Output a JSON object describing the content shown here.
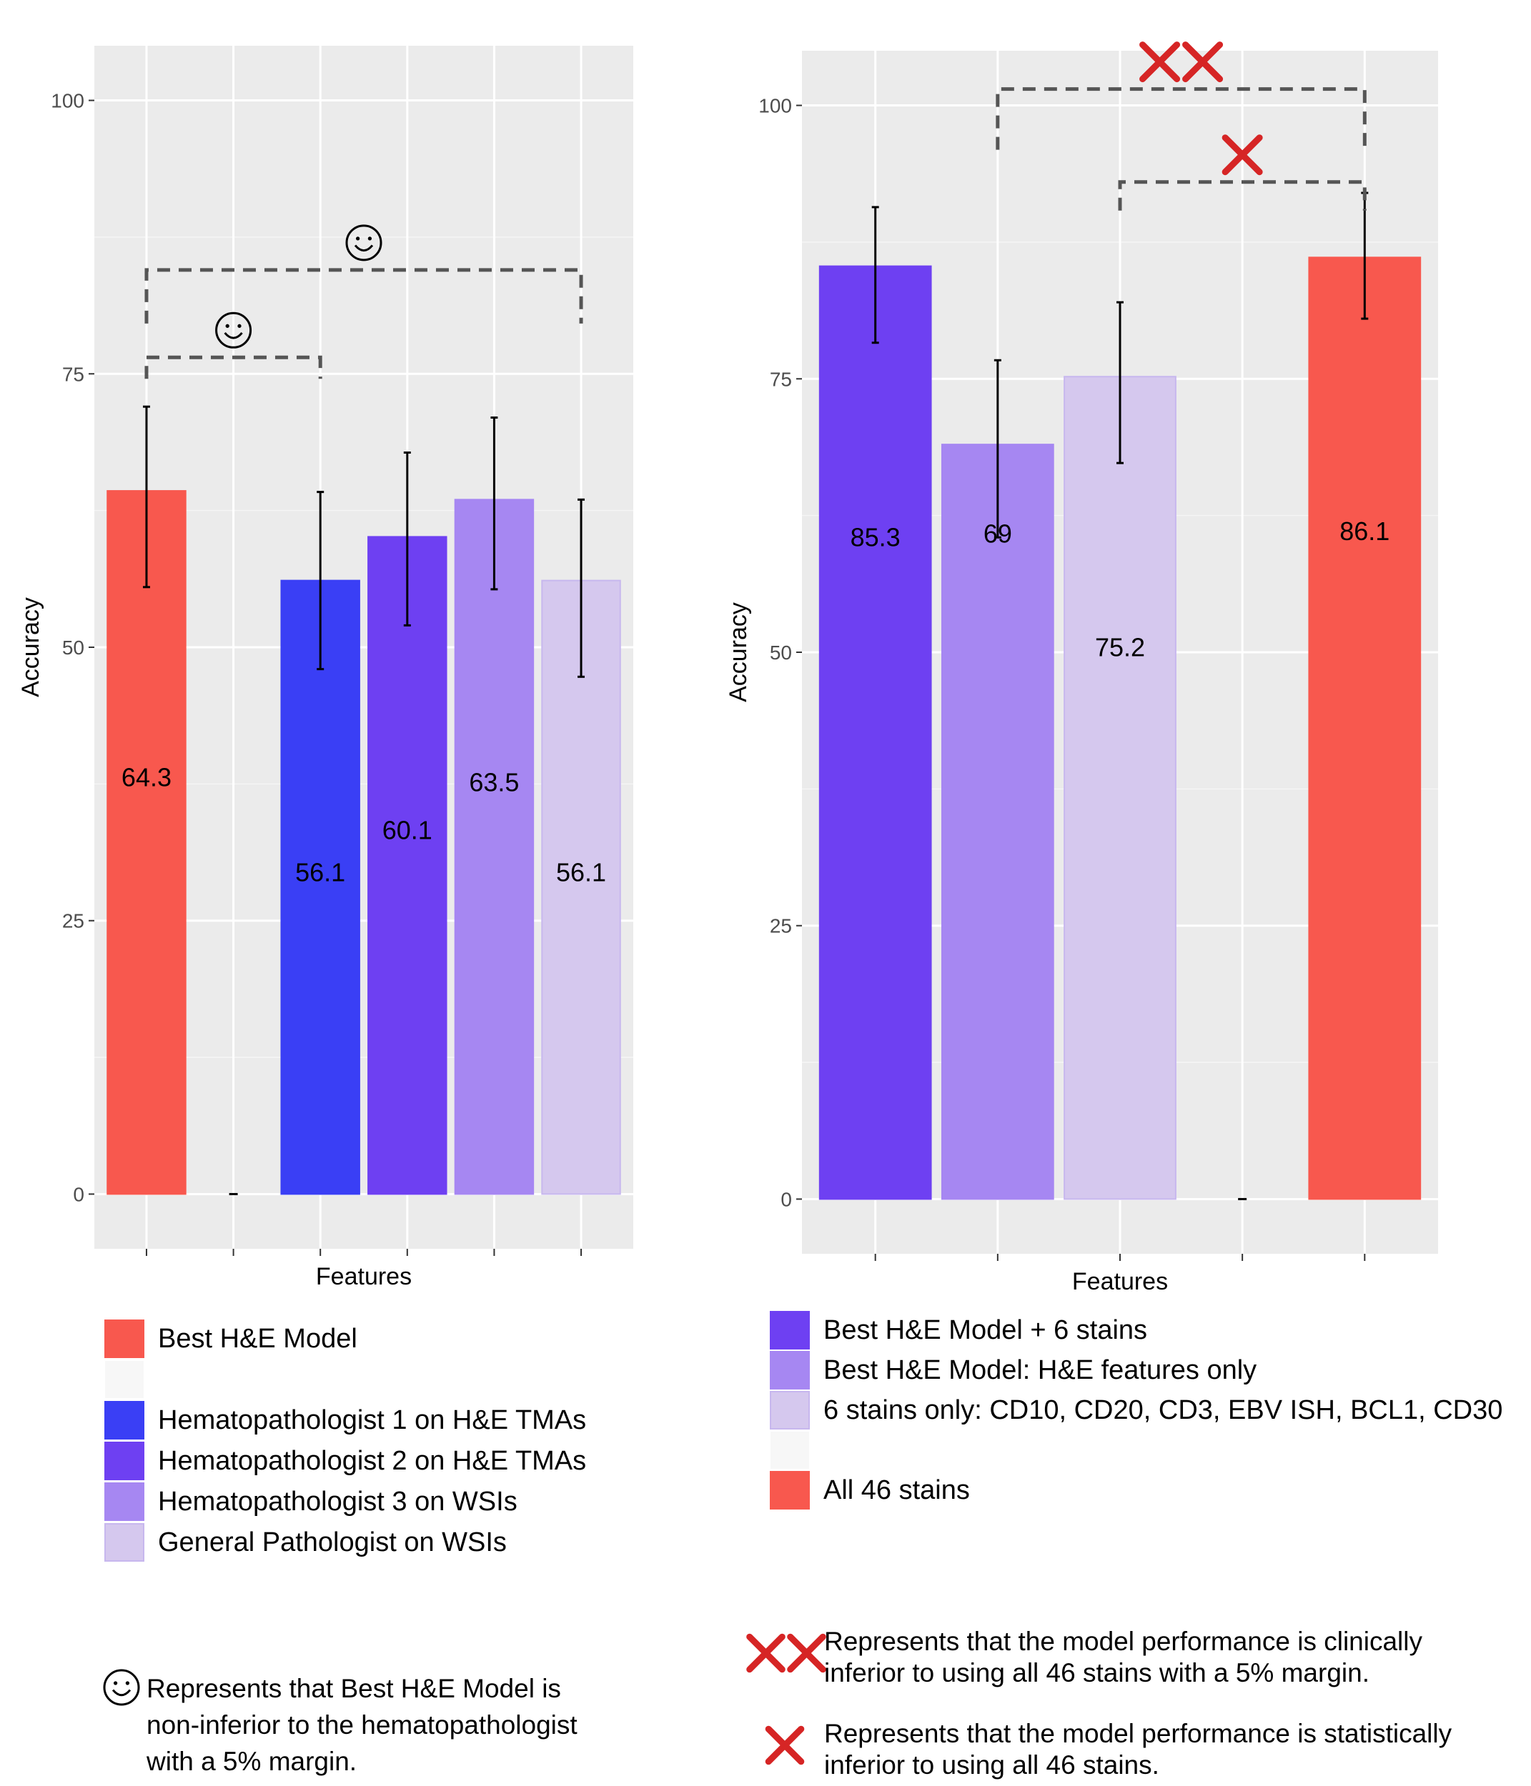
{
  "chart_data": [
    {
      "type": "bar",
      "xlabel": "Features",
      "ylabel": "Accuracy",
      "ylim": [
        -5,
        105
      ],
      "yticks": [
        0,
        25,
        50,
        75,
        100
      ],
      "bars": [
        {
          "series": "Best H&E Model",
          "value": 64.3,
          "label": "64.3",
          "error": [
            55.5,
            72.0
          ],
          "color": "#f8584e"
        },
        {
          "series": "",
          "value": 0,
          "label": "",
          "error": null,
          "color": "#f2f2f2"
        },
        {
          "series": "Hematopathologist 1 on H&E TMAs",
          "value": 56.1,
          "label": "56.1",
          "error": [
            48.0,
            64.2
          ],
          "color": "#3a3ff5"
        },
        {
          "series": "Hematopathologist 2 on H&E TMAs",
          "value": 60.1,
          "label": "60.1",
          "error": [
            52.0,
            67.8
          ],
          "color": "#6e40f2"
        },
        {
          "series": "Hematopathologist 3 on WSIs",
          "value": 63.5,
          "label": "63.5",
          "error": [
            55.3,
            71.0
          ],
          "color": "#a687f2"
        },
        {
          "series": "General Pathologist on WSIs",
          "value": 56.1,
          "label": "56.1",
          "error": [
            47.3,
            63.5
          ],
          "color": "#d5c8ee"
        }
      ],
      "comparisons": [
        {
          "from_bar": 0,
          "to_bar": 2,
          "y": 76.5,
          "symbol": "☺",
          "meaning": "non-inferior"
        },
        {
          "from_bar": 0,
          "to_bar": 5,
          "y": 84.5,
          "symbol": "☺",
          "meaning": "non-inferior"
        }
      ],
      "legend": [
        {
          "label": "Best H&E Model",
          "color": "#f8584e"
        },
        {
          "label": "",
          "color": "#f7f7f7"
        },
        {
          "label": "Hematopathologist 1 on H&E TMAs",
          "color": "#3a3ff5"
        },
        {
          "label": "Hematopathologist 2 on H&E TMAs",
          "color": "#6e40f2"
        },
        {
          "label": "Hematopathologist 3 on WSIs",
          "color": "#a687f2"
        },
        {
          "label": "General Pathologist on WSIs",
          "color": "#d5c8ee"
        }
      ],
      "note": {
        "symbol": "☺",
        "lines": [
          "Represents that Best H&E Model is",
          "non-inferior to the hematopathologist",
          "with a 5% margin."
        ]
      }
    },
    {
      "type": "bar",
      "xlabel": "Features",
      "ylabel": "Accuracy",
      "ylim": [
        -5,
        105
      ],
      "yticks": [
        0,
        25,
        50,
        75,
        100
      ],
      "bars": [
        {
          "series": "Best H&E Model + 6 stains",
          "value": 85.3,
          "label": "85.3",
          "error": [
            78.3,
            90.7
          ],
          "color": "#6e40f2"
        },
        {
          "series": "Best H&E Model: H&E features only",
          "value": 69.0,
          "label": "69",
          "error": [
            60.5,
            76.7
          ],
          "color": "#a687f2"
        },
        {
          "series": "6 stains only: CD10, CD20, CD3, EBV ISH, BCL1, CD30",
          "value": 75.2,
          "label": "75.2",
          "error": [
            67.3,
            82.0
          ],
          "color": "#d5c8ee"
        },
        {
          "series": "",
          "value": 0,
          "label": "",
          "error": null,
          "color": "#f2f2f2"
        },
        {
          "series": "All 46 stains",
          "value": 86.1,
          "label": "86.1",
          "error": [
            80.5,
            92.0
          ],
          "color": "#f8584e"
        }
      ],
      "comparisons": [
        {
          "from_bar": 1,
          "to_bar": 4,
          "y": 101.5,
          "symbol": "✕✕",
          "meaning": "clinically inferior"
        },
        {
          "from_bar": 2,
          "to_bar": 4,
          "y": 93.0,
          "symbol": "✕",
          "meaning": "statistically inferior"
        }
      ],
      "legend": [
        {
          "label": "Best H&E Model + 6 stains",
          "color": "#6e40f2"
        },
        {
          "label": "Best H&E Model: H&E features only",
          "color": "#a687f2"
        },
        {
          "label": "6 stains only: CD10, CD20, CD3, EBV ISH, BCL1, CD30",
          "color": "#d5c8ee"
        },
        {
          "label": "",
          "color": "#f7f7f7"
        },
        {
          "label": "All 46 stains",
          "color": "#f8584e"
        }
      ],
      "notes": [
        {
          "symbol": "✕✕",
          "lines": [
            "Represents that the model performance is clinically",
            "inferior to using all 46 stains with a 5% margin."
          ]
        },
        {
          "symbol": "✕",
          "lines": [
            "Represents that the model performance is statistically",
            "inferior to using all 46 stains."
          ]
        }
      ]
    }
  ]
}
